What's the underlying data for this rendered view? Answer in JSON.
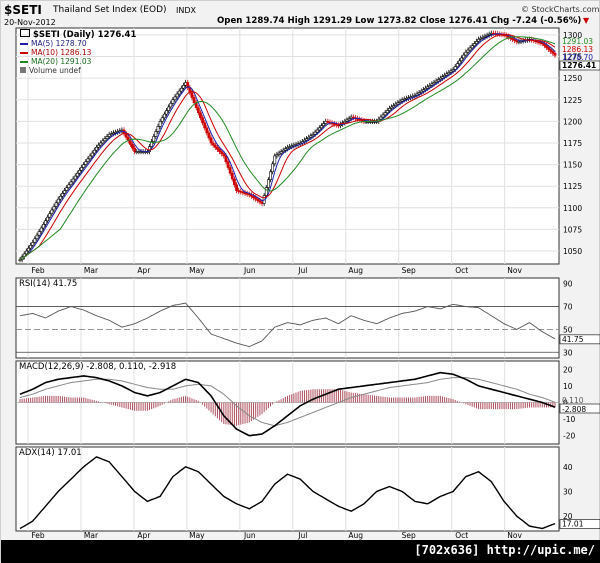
{
  "header": {
    "symbol": "$SETI",
    "name": "Thailand Set Index (EOD)",
    "exchange": "INDX",
    "date": "20-Nov-2012",
    "brand": "© StockCharts.com",
    "ohlc": "Open 1289.74  High 1291.29  Low 1273.82  Close 1276.41  Chg -7.24 (-0.56%)",
    "chg_arrow": "▼"
  },
  "legend": {
    "main": "$SETI (Daily) 1276.41",
    "ma5": "MA(5) 1278.70",
    "ma10": "MA(10) 1286.13",
    "ma20": "MA(20) 1291.03",
    "volume": "Volume undef"
  },
  "panels": {
    "rsi": "RSI(14) 41.75",
    "macd": "MACD(12,26,9) -2.808, 0.110, -2.918",
    "adx": "ADX(14) 17.01"
  },
  "footer": {
    "text": "[702x636] http://upic.me/"
  },
  "colors": {
    "price_up": "#000000",
    "price_down": "#cc0000",
    "ma5": "#2020b0",
    "ma10": "#cc0000",
    "ma20": "#228b22",
    "rsi": "#555555",
    "macd": "#000000",
    "signal": "#888888",
    "histogram": "#b05060"
  },
  "chart_data": [
    {
      "type": "candlestick",
      "title": "$SETI (Daily) 1276.41",
      "x_ticks": [
        "Feb",
        "Mar",
        "Apr",
        "May",
        "Jun",
        "Jul",
        "Aug",
        "Sep",
        "Oct",
        "Nov"
      ],
      "y_ticks": [
        1050,
        1075,
        1100,
        1125,
        1150,
        1175,
        1200,
        1225,
        1250,
        1275,
        1300
      ],
      "ylim": [
        1035,
        1308
      ],
      "right_labels": [
        "1291.03",
        "1286.13",
        "1278.70",
        "1276.41"
      ],
      "close_path": [
        [
          "Feb 1",
          1040
        ],
        [
          "Feb 8",
          1060
        ],
        [
          "Feb 15",
          1085
        ],
        [
          "Feb 22",
          1110
        ],
        [
          "Mar 1",
          1130
        ],
        [
          "Mar 8",
          1150
        ],
        [
          "Mar 15",
          1170
        ],
        [
          "Mar 22",
          1185
        ],
        [
          "Mar 29",
          1190
        ],
        [
          "Apr 5",
          1165
        ],
        [
          "Apr 12",
          1165
        ],
        [
          "Apr 19",
          1200
        ],
        [
          "Apr 26",
          1225
        ],
        [
          "May 2",
          1245
        ],
        [
          "May 9",
          1210
        ],
        [
          "May 16",
          1175
        ],
        [
          "May 23",
          1160
        ],
        [
          "May 30",
          1120
        ],
        [
          "Jun 6",
          1115
        ],
        [
          "Jun 13",
          1105
        ],
        [
          "Jun 20",
          1160
        ],
        [
          "Jun 27",
          1170
        ],
        [
          "Jul 4",
          1175
        ],
        [
          "Jul 11",
          1185
        ],
        [
          "Jul 18",
          1200
        ],
        [
          "Jul 25",
          1195
        ],
        [
          "Aug 1",
          1205
        ],
        [
          "Aug 8",
          1200
        ],
        [
          "Aug 15",
          1200
        ],
        [
          "Aug 22",
          1215
        ],
        [
          "Aug 29",
          1225
        ],
        [
          "Sep 5",
          1230
        ],
        [
          "Sep 12",
          1240
        ],
        [
          "Sep 19",
          1250
        ],
        [
          "Sep 26",
          1260
        ],
        [
          "Oct 3",
          1280
        ],
        [
          "Oct 10",
          1295
        ],
        [
          "Oct 17",
          1302
        ],
        [
          "Oct 24",
          1300
        ],
        [
          "Oct 31",
          1292
        ],
        [
          "Nov 7",
          1295
        ],
        [
          "Nov 14",
          1290
        ],
        [
          "Nov 20",
          1276.41
        ]
      ]
    },
    {
      "type": "line",
      "title": "RSI(14) 41.75",
      "y_ticks": [
        30,
        50,
        70,
        90
      ],
      "ylim": [
        25,
        95
      ],
      "right_label": "41.75",
      "bands": [
        30,
        70
      ],
      "center": 50,
      "values": [
        62,
        64,
        60,
        66,
        70,
        67,
        62,
        58,
        52,
        55,
        60,
        66,
        71,
        73,
        60,
        46,
        42,
        38,
        35,
        40,
        52,
        56,
        54,
        58,
        60,
        55,
        62,
        58,
        55,
        60,
        64,
        66,
        70,
        68,
        72,
        70,
        69,
        62,
        55,
        50,
        56,
        48,
        41.75
      ]
    },
    {
      "type": "line",
      "title": "MACD(12,26,9) -2.808, 0.110, -2.918",
      "y_ticks": [
        -20,
        -10,
        0,
        10,
        20
      ],
      "ylim": [
        -25,
        25
      ],
      "right_labels": [
        "0.110",
        "-2.808"
      ],
      "series": [
        {
          "name": "MACD(12,26,9)",
          "values": [
            5,
            8,
            12,
            14,
            15,
            16,
            15,
            13,
            10,
            6,
            4,
            6,
            10,
            14,
            12,
            4,
            -8,
            -16,
            -20,
            -19,
            -14,
            -8,
            -2,
            2,
            5,
            8,
            9,
            10,
            11,
            12,
            13,
            14,
            16,
            18,
            17,
            14,
            10,
            8,
            6,
            4,
            2,
            0,
            -2.808
          ]
        },
        {
          "name": "signal",
          "values": [
            3,
            5,
            8,
            10,
            12,
            13,
            14,
            14,
            13,
            11,
            9,
            8,
            8,
            10,
            11,
            10,
            5,
            -2,
            -8,
            -12,
            -14,
            -12,
            -9,
            -6,
            -3,
            0,
            3,
            5,
            7,
            9,
            10,
            11,
            12,
            14,
            15,
            15,
            14,
            12,
            10,
            8,
            5,
            3,
            0.11
          ]
        },
        {
          "name": "histogram",
          "values": [
            2,
            3,
            4,
            4,
            3,
            3,
            1,
            -1,
            -3,
            -5,
            -5,
            -2,
            2,
            4,
            1,
            -6,
            -13,
            -14,
            -12,
            -7,
            0,
            4,
            7,
            8,
            8,
            8,
            6,
            5,
            4,
            3,
            3,
            3,
            4,
            4,
            2,
            -1,
            -4,
            -4,
            -4,
            -4,
            -3,
            -3,
            -2.918
          ]
        }
      ]
    },
    {
      "type": "line",
      "title": "ADX(14) 17.01",
      "x_ticks": [
        "Feb",
        "Mar",
        "Apr",
        "May",
        "Jun",
        "Jul",
        "Aug",
        "Sep",
        "Oct",
        "Nov"
      ],
      "y_ticks": [
        20,
        30,
        40
      ],
      "ylim": [
        14,
        48
      ],
      "right_label": "17.01",
      "values": [
        15,
        18,
        24,
        30,
        35,
        40,
        44,
        42,
        36,
        30,
        26,
        28,
        36,
        40,
        38,
        33,
        28,
        25,
        23,
        26,
        33,
        37,
        35,
        30,
        27,
        24,
        22,
        25,
        30,
        32,
        30,
        26,
        25,
        28,
        30,
        36,
        38,
        34,
        26,
        20,
        16,
        15,
        17.01
      ]
    }
  ]
}
